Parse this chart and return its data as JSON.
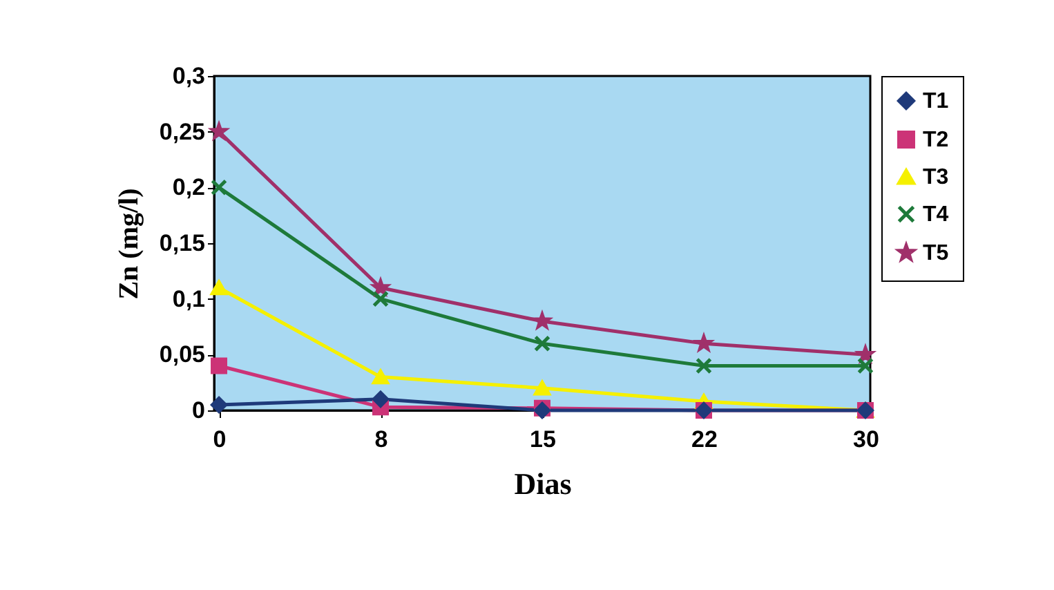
{
  "chart_data": {
    "type": "line",
    "xlabel": "Dias",
    "ylabel": "Zn  (mg/l)",
    "categories": [
      "0",
      "8",
      "15",
      "22",
      "30"
    ],
    "ylim": [
      0,
      0.3
    ],
    "yticks": [
      0,
      {
        "value": 0.05,
        "label": "0,05"
      },
      {
        "value": 0.1,
        "label": "0,1"
      },
      {
        "value": 0.15,
        "label": "0,15"
      },
      {
        "value": 0.2,
        "label": "0,2"
      },
      {
        "value": 0.25,
        "label": "0,25"
      },
      {
        "value": 0.3,
        "label": "0,3"
      }
    ],
    "grid": false,
    "legend": "right",
    "series": [
      {
        "name": "T1",
        "color": "#1f3a7a",
        "marker": "diamond",
        "values": [
          0.005,
          0.01,
          0,
          0,
          0
        ]
      },
      {
        "name": "T2",
        "color": "#cc3377",
        "marker": "square",
        "values": [
          0.04,
          0.003,
          0.002,
          0,
          0
        ]
      },
      {
        "name": "T3",
        "color": "#f5f000",
        "marker": "triangle",
        "values": [
          0.11,
          0.03,
          0.02,
          0.008,
          0
        ]
      },
      {
        "name": "T4",
        "color": "#1e7a3a",
        "marker": "cross",
        "values": [
          0.2,
          0.1,
          0.06,
          0.04,
          0.04
        ]
      },
      {
        "name": "T5",
        "color": "#a0306a",
        "marker": "star",
        "values": [
          0.25,
          0.11,
          0.08,
          0.06,
          0.05
        ]
      }
    ]
  }
}
